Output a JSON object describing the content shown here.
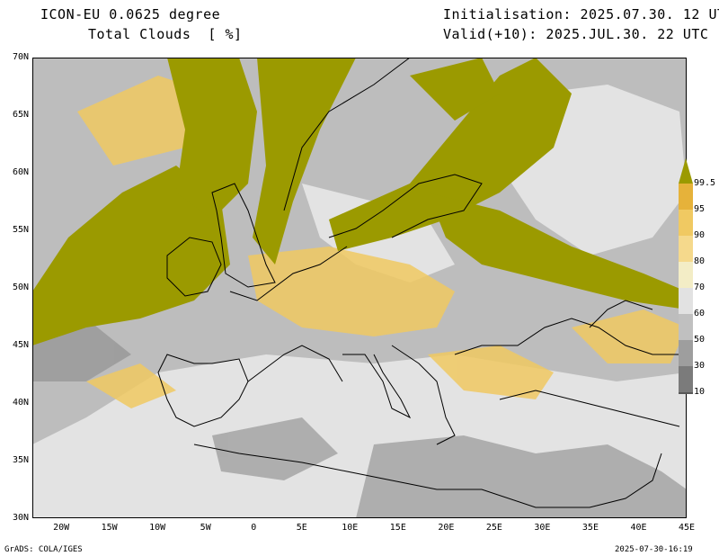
{
  "header": {
    "title": "ICON-EU 0.0625 degree",
    "subtitle": "Total Clouds  [ %]",
    "init": "Initialisation: 2025.07.30. 12 UTC",
    "valid": "Valid(+10): 2025.JUL.30. 22 UTC"
  },
  "map": {
    "lat_labels": [
      "70N",
      "65N",
      "60N",
      "55N",
      "50N",
      "45N",
      "40N",
      "35N",
      "30N"
    ],
    "lon_labels": [
      "20W",
      "15W",
      "10W",
      "5W",
      "0",
      "5E",
      "10E",
      "15E",
      "20E",
      "25E",
      "30E",
      "35E",
      "40E",
      "45E"
    ],
    "extent": {
      "lon_min": -23,
      "lon_max": 45,
      "lat_min": 30,
      "lat_max": 70
    }
  },
  "legend": {
    "labels": [
      "99.5",
      "95",
      "90",
      "80",
      "70",
      "60",
      "50",
      "30",
      "10"
    ],
    "colors": [
      "#9b9a00",
      "#e6b23a",
      "#f0c962",
      "#f5d98c",
      "#f3edc6",
      "#e2e2e2",
      "#c0c0c0",
      "#9e9e9e",
      "#7b7b7b",
      "#585858"
    ]
  },
  "footer": {
    "left": "GrADS: COLA/IGES",
    "right": "2025-07-30-16:19"
  }
}
